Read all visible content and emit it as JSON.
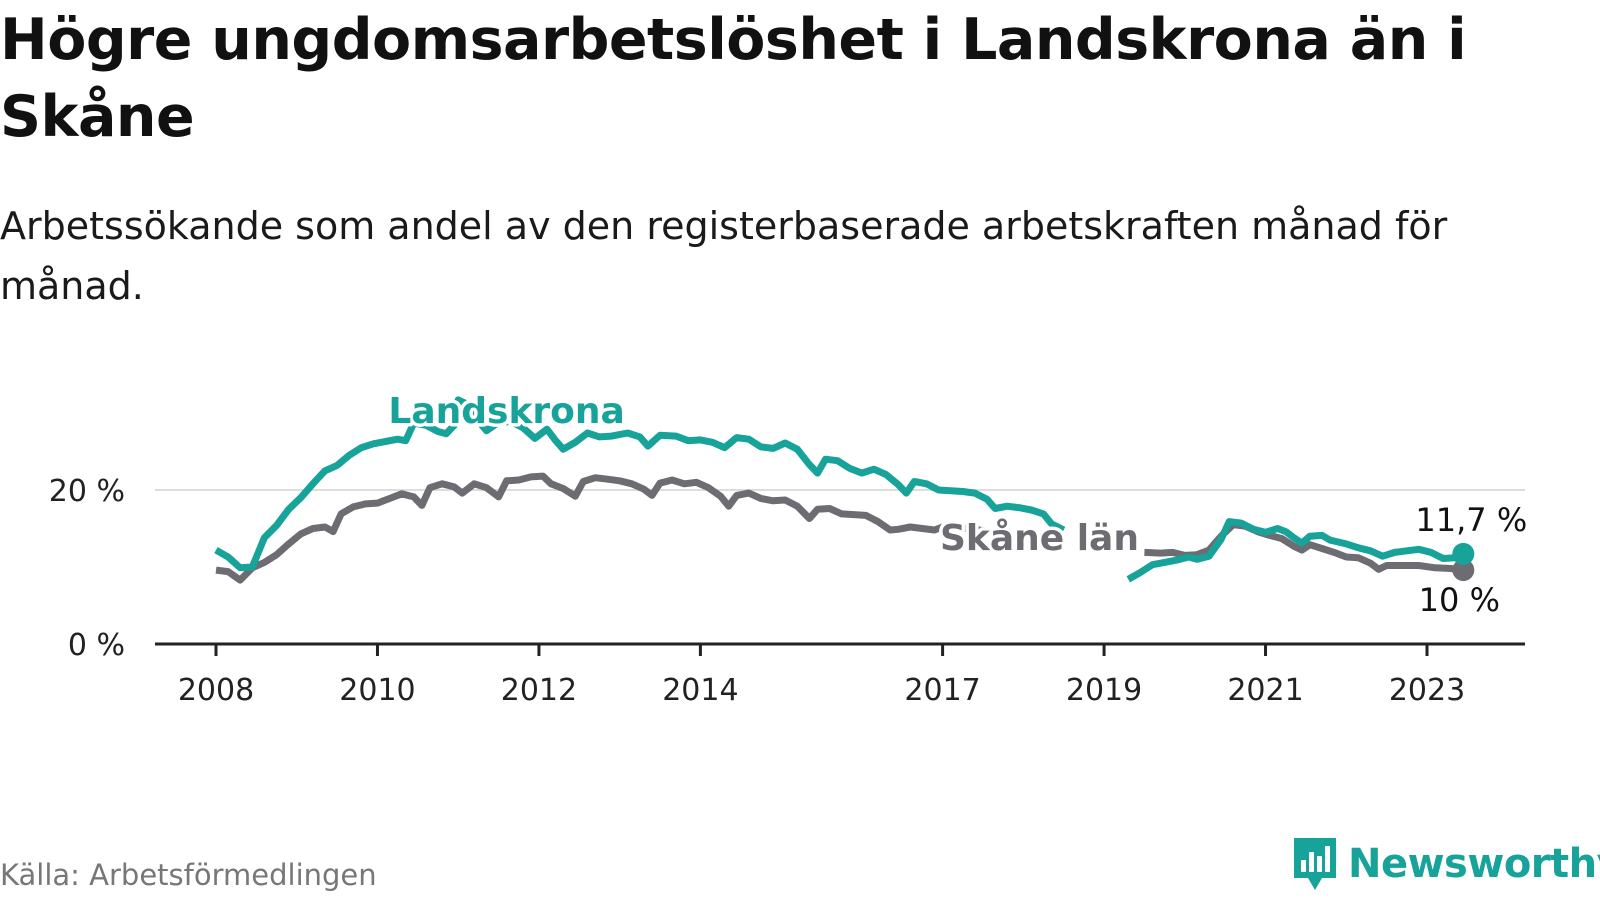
{
  "header": {
    "title": "Högre ungdomsarbetslöshet i Landskrona än i Skåne",
    "subtitle": "Arbetssökande som andel av den registerbaserade arbetskraften månad för månad."
  },
  "footer": {
    "source": "Källa: Arbetsförmedlingen",
    "brand": "Newsworthy",
    "brand_icon": "bar-chart-speech-icon"
  },
  "colors": {
    "landskrona": "#17a39a",
    "skane": "#6e6c73",
    "grid": "#dddddd",
    "axis": "#222222"
  },
  "chart_data": {
    "type": "line",
    "title": "Högre ungdomsarbetslöshet i Landskrona än i Skåne",
    "xlabel": "",
    "ylabel": "",
    "ylim": [
      0,
      32
    ],
    "xlim": [
      2007.2,
      2024.2
    ],
    "x_ticks": [
      {
        "value": 2008,
        "label": "2008"
      },
      {
        "value": 2010,
        "label": "2010"
      },
      {
        "value": 2012,
        "label": "2012"
      },
      {
        "value": 2014,
        "label": "2014"
      },
      {
        "value": 2017,
        "label": "2017"
      },
      {
        "value": 2019,
        "label": "2019"
      },
      {
        "value": 2021,
        "label": "2021"
      },
      {
        "value": 2023,
        "label": "2023"
      }
    ],
    "y_ticks": [
      {
        "value": 0,
        "label": "0 %"
      },
      {
        "value": 20,
        "label": "20 %"
      }
    ],
    "grid": true,
    "series": [
      {
        "name": "Landskrona",
        "label": "Landskrona",
        "label_at": [
          2011.6,
          28.7
        ],
        "end_label": "11,7 %",
        "gap_between": [
          2018.5,
          2019.3
        ],
        "points": [
          [
            2008.0,
            12.2
          ],
          [
            2008.15,
            11.3
          ],
          [
            2008.3,
            9.9
          ],
          [
            2008.45,
            10.0
          ],
          [
            2008.6,
            13.8
          ],
          [
            2008.75,
            15.4
          ],
          [
            2008.9,
            17.5
          ],
          [
            2009.05,
            19.0
          ],
          [
            2009.2,
            20.8
          ],
          [
            2009.35,
            22.5
          ],
          [
            2009.5,
            23.2
          ],
          [
            2009.65,
            24.5
          ],
          [
            2009.8,
            25.5
          ],
          [
            2009.95,
            26.0
          ],
          [
            2010.1,
            26.3
          ],
          [
            2010.25,
            26.6
          ],
          [
            2010.35,
            26.4
          ],
          [
            2010.45,
            28.7
          ],
          [
            2010.6,
            28.4
          ],
          [
            2010.75,
            27.6
          ],
          [
            2010.85,
            27.3
          ],
          [
            2010.95,
            28.4
          ],
          [
            2011.0,
            31.7
          ],
          [
            2011.1,
            31.2
          ],
          [
            2011.2,
            29.6
          ],
          [
            2011.35,
            27.7
          ],
          [
            2011.5,
            28.8
          ],
          [
            2011.65,
            28.9
          ],
          [
            2011.8,
            28.1
          ],
          [
            2011.95,
            26.7
          ],
          [
            2012.1,
            27.9
          ],
          [
            2012.2,
            26.5
          ],
          [
            2012.3,
            25.3
          ],
          [
            2012.45,
            26.2
          ],
          [
            2012.6,
            27.4
          ],
          [
            2012.75,
            26.9
          ],
          [
            2012.9,
            27.0
          ],
          [
            2013.1,
            27.4
          ],
          [
            2013.25,
            26.9
          ],
          [
            2013.35,
            25.7
          ],
          [
            2013.5,
            27.1
          ],
          [
            2013.7,
            27.0
          ],
          [
            2013.85,
            26.4
          ],
          [
            2014.0,
            26.5
          ],
          [
            2014.15,
            26.2
          ],
          [
            2014.3,
            25.5
          ],
          [
            2014.45,
            26.8
          ],
          [
            2014.6,
            26.6
          ],
          [
            2014.75,
            25.6
          ],
          [
            2014.9,
            25.4
          ],
          [
            2015.05,
            26.1
          ],
          [
            2015.2,
            25.3
          ],
          [
            2015.35,
            23.3
          ],
          [
            2015.45,
            22.2
          ],
          [
            2015.55,
            24.0
          ],
          [
            2015.7,
            23.8
          ],
          [
            2015.85,
            22.8
          ],
          [
            2016.0,
            22.2
          ],
          [
            2016.15,
            22.7
          ],
          [
            2016.3,
            22.0
          ],
          [
            2016.45,
            20.7
          ],
          [
            2016.55,
            19.6
          ],
          [
            2016.65,
            21.1
          ],
          [
            2016.8,
            20.8
          ],
          [
            2016.95,
            20.0
          ],
          [
            2017.1,
            19.9
          ],
          [
            2017.25,
            19.8
          ],
          [
            2017.4,
            19.6
          ],
          [
            2017.55,
            18.8
          ],
          [
            2017.65,
            17.6
          ],
          [
            2017.8,
            17.9
          ],
          [
            2017.95,
            17.7
          ],
          [
            2018.1,
            17.4
          ],
          [
            2018.25,
            16.9
          ],
          [
            2018.35,
            15.6
          ],
          [
            2018.5,
            14.8
          ],
          [
            2019.3,
            8.4
          ],
          [
            2019.45,
            9.3
          ],
          [
            2019.6,
            10.3
          ],
          [
            2019.75,
            10.6
          ],
          [
            2019.9,
            10.9
          ],
          [
            2020.05,
            11.3
          ],
          [
            2020.15,
            11.0
          ],
          [
            2020.3,
            11.4
          ],
          [
            2020.45,
            13.6
          ],
          [
            2020.55,
            15.9
          ],
          [
            2020.7,
            15.7
          ],
          [
            2020.85,
            14.9
          ],
          [
            2021.0,
            14.5
          ],
          [
            2021.15,
            15.0
          ],
          [
            2021.25,
            14.6
          ],
          [
            2021.35,
            13.8
          ],
          [
            2021.45,
            13.1
          ],
          [
            2021.55,
            14.0
          ],
          [
            2021.7,
            14.1
          ],
          [
            2021.8,
            13.5
          ],
          [
            2022.0,
            13.0
          ],
          [
            2022.15,
            12.5
          ],
          [
            2022.3,
            12.1
          ],
          [
            2022.45,
            11.4
          ],
          [
            2022.6,
            11.9
          ],
          [
            2022.75,
            12.1
          ],
          [
            2022.9,
            12.3
          ],
          [
            2023.05,
            11.9
          ],
          [
            2023.2,
            11.1
          ],
          [
            2023.35,
            11.2
          ],
          [
            2023.45,
            11.7
          ]
        ]
      },
      {
        "name": "Skåne län",
        "label": "Skåne län",
        "label_at": [
          2018.2,
          12.2
        ],
        "end_label": "10 %",
        "gap_between": [
          2017.6,
          2019.5
        ],
        "points": [
          [
            2008.0,
            9.6
          ],
          [
            2008.15,
            9.4
          ],
          [
            2008.3,
            8.3
          ],
          [
            2008.45,
            9.9
          ],
          [
            2008.6,
            10.6
          ],
          [
            2008.75,
            11.6
          ],
          [
            2008.9,
            13.0
          ],
          [
            2009.05,
            14.3
          ],
          [
            2009.2,
            15.0
          ],
          [
            2009.35,
            15.2
          ],
          [
            2009.45,
            14.6
          ],
          [
            2009.55,
            16.9
          ],
          [
            2009.7,
            17.8
          ],
          [
            2009.85,
            18.2
          ],
          [
            2010.0,
            18.3
          ],
          [
            2010.15,
            18.9
          ],
          [
            2010.3,
            19.5
          ],
          [
            2010.45,
            19.1
          ],
          [
            2010.55,
            18.0
          ],
          [
            2010.65,
            20.3
          ],
          [
            2010.8,
            20.8
          ],
          [
            2010.95,
            20.4
          ],
          [
            2011.05,
            19.6
          ],
          [
            2011.2,
            20.8
          ],
          [
            2011.35,
            20.3
          ],
          [
            2011.5,
            19.1
          ],
          [
            2011.6,
            21.2
          ],
          [
            2011.75,
            21.3
          ],
          [
            2011.9,
            21.7
          ],
          [
            2012.05,
            21.8
          ],
          [
            2012.15,
            20.8
          ],
          [
            2012.3,
            20.2
          ],
          [
            2012.45,
            19.2
          ],
          [
            2012.55,
            21.1
          ],
          [
            2012.7,
            21.6
          ],
          [
            2012.85,
            21.4
          ],
          [
            2013.0,
            21.2
          ],
          [
            2013.15,
            20.8
          ],
          [
            2013.3,
            20.1
          ],
          [
            2013.4,
            19.3
          ],
          [
            2013.5,
            20.9
          ],
          [
            2013.65,
            21.3
          ],
          [
            2013.8,
            20.8
          ],
          [
            2013.95,
            21.0
          ],
          [
            2014.1,
            20.3
          ],
          [
            2014.25,
            19.2
          ],
          [
            2014.35,
            17.9
          ],
          [
            2014.45,
            19.3
          ],
          [
            2014.6,
            19.6
          ],
          [
            2014.75,
            18.9
          ],
          [
            2014.9,
            18.6
          ],
          [
            2015.05,
            18.7
          ],
          [
            2015.2,
            17.9
          ],
          [
            2015.35,
            16.3
          ],
          [
            2015.45,
            17.5
          ],
          [
            2015.6,
            17.6
          ],
          [
            2015.75,
            16.9
          ],
          [
            2015.9,
            16.8
          ],
          [
            2016.05,
            16.7
          ],
          [
            2016.2,
            15.9
          ],
          [
            2016.35,
            14.8
          ],
          [
            2016.45,
            14.9
          ],
          [
            2016.6,
            15.2
          ],
          [
            2016.75,
            15.0
          ],
          [
            2016.9,
            14.8
          ],
          [
            2017.0,
            15.2
          ],
          [
            2017.15,
            15.2
          ],
          [
            2017.3,
            15.0
          ],
          [
            2017.45,
            14.8
          ],
          [
            2017.6,
            14.6
          ],
          [
            2019.5,
            11.9
          ],
          [
            2019.7,
            11.8
          ],
          [
            2019.85,
            11.9
          ],
          [
            2020.0,
            11.5
          ],
          [
            2020.15,
            11.6
          ],
          [
            2020.3,
            12.2
          ],
          [
            2020.45,
            14.0
          ],
          [
            2020.6,
            15.5
          ],
          [
            2020.75,
            15.3
          ],
          [
            2020.9,
            14.6
          ],
          [
            2021.05,
            14.1
          ],
          [
            2021.2,
            13.7
          ],
          [
            2021.35,
            12.7
          ],
          [
            2021.45,
            12.2
          ],
          [
            2021.55,
            12.9
          ],
          [
            2021.7,
            12.4
          ],
          [
            2021.85,
            11.9
          ],
          [
            2022.0,
            11.3
          ],
          [
            2022.15,
            11.2
          ],
          [
            2022.3,
            10.5
          ],
          [
            2022.4,
            9.7
          ],
          [
            2022.5,
            10.2
          ],
          [
            2022.7,
            10.2
          ],
          [
            2022.9,
            10.2
          ],
          [
            2023.1,
            9.9
          ],
          [
            2023.3,
            9.8
          ],
          [
            2023.45,
            9.6
          ]
        ]
      }
    ]
  }
}
